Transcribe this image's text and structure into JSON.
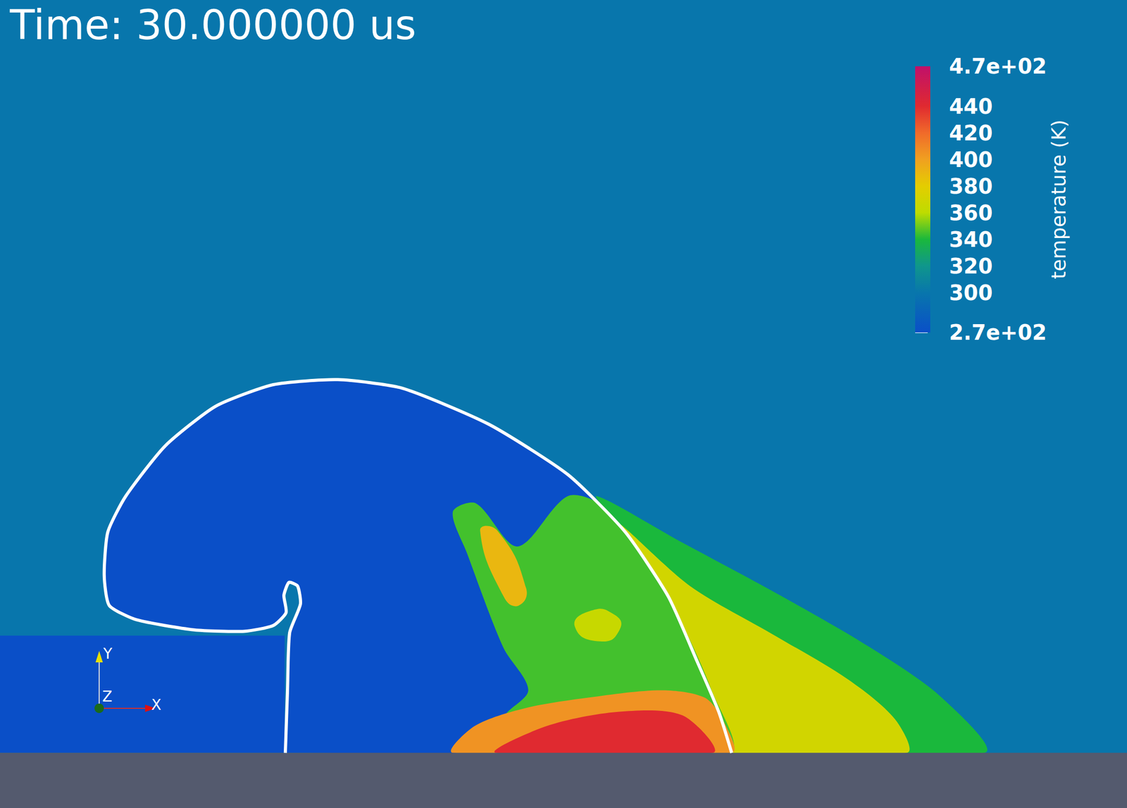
{
  "chart_data": {
    "type": "field",
    "title": "Time: 30.000000 us",
    "colorbar": {
      "label": "temperature (K)",
      "lim": [
        270,
        470
      ],
      "ticks": [
        {
          "value": 270,
          "label": "2.7e+02"
        },
        300,
        320,
        340,
        360,
        380,
        400,
        420,
        440,
        {
          "value": 470,
          "label": "4.7e+02"
        }
      ]
    },
    "field": {
      "ambient": 300,
      "bubble": 270,
      "wake_outer": 340,
      "wake": 370,
      "mixing": 345,
      "streak": 390,
      "eddy": 365,
      "hot_edge": 405,
      "hot_core": 440
    },
    "axes_triad": [
      "X",
      "Y",
      "Z"
    ]
  }
}
